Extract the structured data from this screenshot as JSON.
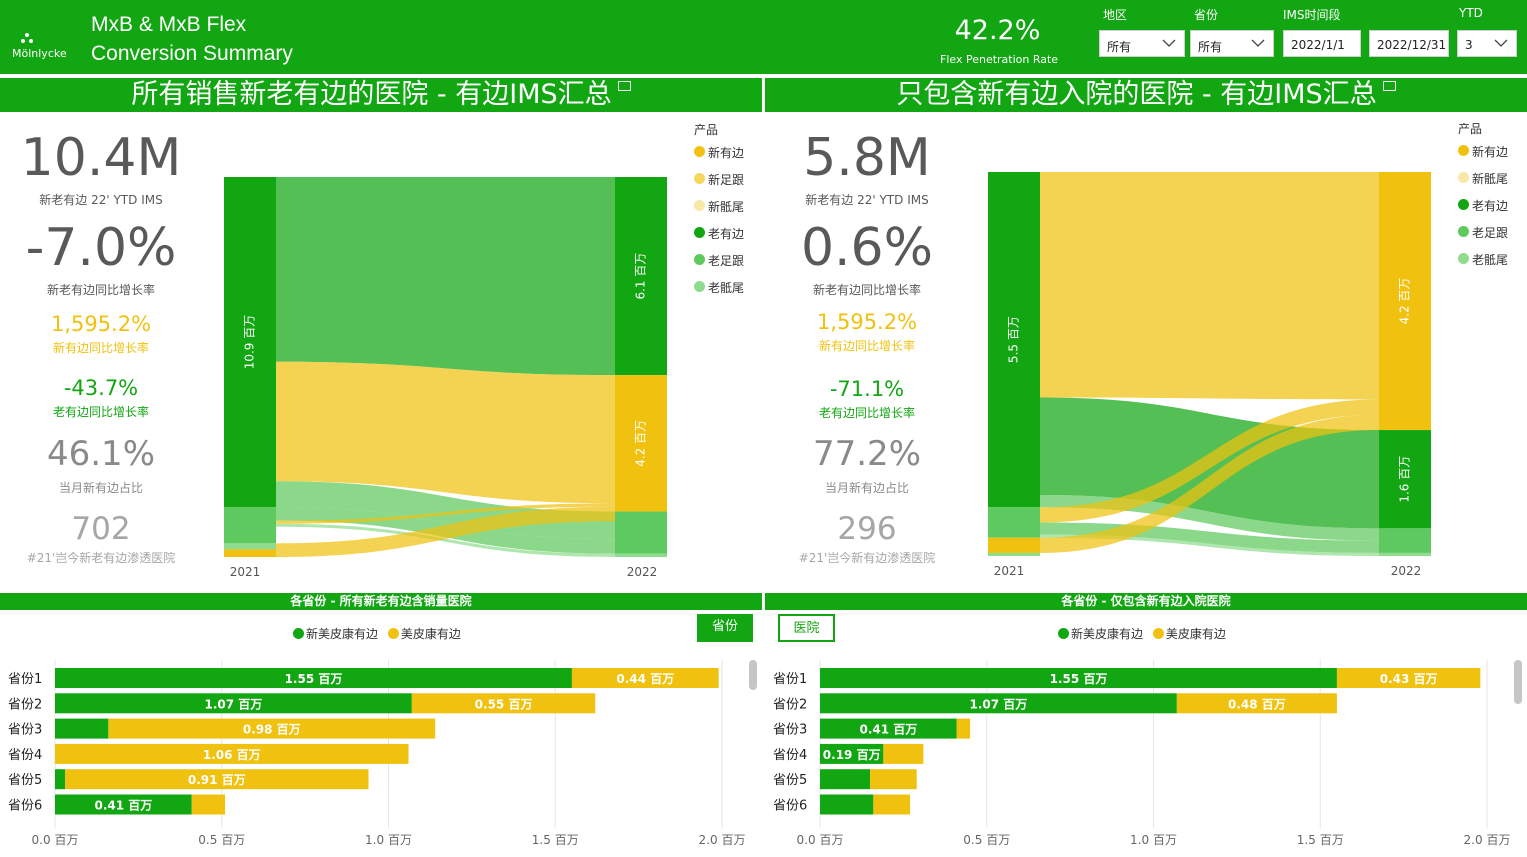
{
  "header": {
    "logo_text": "Mölnlycke",
    "title_line1": "MxB & MxB Flex",
    "title_line2": "Conversion Summary",
    "flex_rate_value": "42.2%",
    "flex_rate_label": "Flex Penetration Rate",
    "brand_color": "#12a612"
  },
  "filters": {
    "region": {
      "label": "地区",
      "value": "所有"
    },
    "province": {
      "label": "省份",
      "value": "所有"
    },
    "ims_period": {
      "label": "IMS时间段",
      "start": "2022/1/1",
      "end": "2022/12/31"
    },
    "ytd": {
      "label": "YTD",
      "value": "3"
    }
  },
  "left_panel": {
    "title": "所有销售新老有边的医院 - 有边IMS汇总",
    "kpis": {
      "ims": {
        "value": "10.4M",
        "label": "新老有边 22' YTD IMS"
      },
      "growth": {
        "value": "-7.0%",
        "label": "新老有边同比增长率"
      },
      "new_growth": {
        "value": "1,595.2%",
        "label": "新有边同比增长率"
      },
      "old_growth": {
        "value": "-43.7%",
        "label": "老有边同比增长率"
      },
      "share": {
        "value": "46.1%",
        "label": "当月新有边占比"
      },
      "hospitals": {
        "value": "702",
        "label": "#21'岂今新老有边渗透医院"
      }
    },
    "legend": {
      "title": "产品",
      "items": [
        {
          "label": "新有边",
          "color": "#f0c20f"
        },
        {
          "label": "新足跟",
          "color": "#f5d75e"
        },
        {
          "label": "新骶尾",
          "color": "#f8e7a6"
        },
        {
          "label": "老有边",
          "color": "#12a612"
        },
        {
          "label": "老足跟",
          "color": "#5ec95e"
        },
        {
          "label": "老骶尾",
          "color": "#8fdc8f"
        }
      ]
    }
  },
  "right_panel": {
    "title": "只包含新有边入院的医院 - 有边IMS汇总",
    "kpis": {
      "ims": {
        "value": "5.8M",
        "label": "新老有边 22' YTD IMS"
      },
      "growth": {
        "value": "0.6%",
        "label": "新老有边同比增长率"
      },
      "new_growth": {
        "value": "1,595.2%",
        "label": "新有边同比增长率"
      },
      "old_growth": {
        "value": "-71.1%",
        "label": "老有边同比增长率"
      },
      "share": {
        "value": "77.2%",
        "label": "当月新有边占比"
      },
      "hospitals": {
        "value": "296",
        "label": "#21'岂今新有边渗透医院"
      }
    },
    "legend": {
      "title": "产品",
      "items": [
        {
          "label": "新有边",
          "color": "#f0c20f"
        },
        {
          "label": "新骶尾",
          "color": "#f8e7a6"
        },
        {
          "label": "老有边",
          "color": "#12a612"
        },
        {
          "label": "老足跟",
          "color": "#5ec95e"
        },
        {
          "label": "老骶尾",
          "color": "#8fdc8f"
        }
      ]
    }
  },
  "chart_data": [
    {
      "type": "sankey",
      "categories": [
        "2021",
        "2022"
      ],
      "node_labels": {
        "left_2021": "10.9 百万",
        "right_old": "6.1 百万",
        "right_new": "4.2 百万"
      },
      "source_2021": [
        {
          "name": "老有边",
          "value": 10.9
        },
        {
          "name": "老足跟",
          "value": 1.2
        },
        {
          "name": "老骶尾",
          "value": 0.2
        },
        {
          "name": "新有边",
          "value": 0.25
        }
      ],
      "target_2022": [
        {
          "name": "老有边",
          "value": 6.1
        },
        {
          "name": "新有边",
          "value": 4.2
        },
        {
          "name": "老足跟",
          "value": 1.3
        },
        {
          "name": "老骶尾",
          "value": 0.1
        }
      ],
      "legend_position": "right"
    },
    {
      "type": "sankey",
      "categories": [
        "2021",
        "2022"
      ],
      "node_labels": {
        "left_2021": "5.5 百万",
        "right_new": "4.2 百万",
        "right_old": "1.6 百万"
      },
      "source_2021": [
        {
          "name": "老有边",
          "value": 5.5
        },
        {
          "name": "老足跟",
          "value": 0.5
        },
        {
          "name": "新有边",
          "value": 0.25
        },
        {
          "name": "老骶尾",
          "value": 0.05
        }
      ],
      "target_2022": [
        {
          "name": "新有边",
          "value": 4.2
        },
        {
          "name": "老有边",
          "value": 1.6
        },
        {
          "name": "老足跟",
          "value": 0.4
        },
        {
          "name": "老骶尾",
          "value": 0.05
        }
      ],
      "legend_position": "right"
    },
    {
      "type": "bar",
      "orientation": "horizontal",
      "stacked": true,
      "title": "各省份 - 所有新老有边含销量医院",
      "categories": [
        "省份1",
        "省份2",
        "省份3",
        "省份4",
        "省份5",
        "省份6"
      ],
      "series": [
        {
          "name": "新美皮康有边",
          "color": "#12a612",
          "values": [
            1.55,
            1.07,
            0.16,
            0.0,
            0.03,
            0.41
          ],
          "labels": [
            "1.55 百万",
            "1.07 百万",
            "",
            "",
            "",
            "0.41 百万"
          ]
        },
        {
          "name": "美皮康有边",
          "color": "#f0c20f",
          "values": [
            0.44,
            0.55,
            0.98,
            1.06,
            0.91,
            0.1
          ],
          "labels": [
            "0.44 百万",
            "0.55 百万",
            "0.98 百万",
            "1.06 百万",
            "0.91 百万",
            ""
          ]
        }
      ],
      "x_ticks": [
        "0.0 百万",
        "0.5 百万",
        "1.0 百万",
        "1.5 百万",
        "2.0 百万"
      ],
      "xlim": [
        0,
        2.0
      ],
      "button_label": "省份"
    },
    {
      "type": "bar",
      "orientation": "horizontal",
      "stacked": true,
      "title": "各省份 - 仅包含新有边入院医院",
      "categories": [
        "省份1",
        "省份2",
        "省份3",
        "省份4",
        "省份5",
        "省份6"
      ],
      "series": [
        {
          "name": "新美皮康有边",
          "color": "#12a612",
          "values": [
            1.55,
            1.07,
            0.41,
            0.19,
            0.15,
            0.16
          ],
          "labels": [
            "1.55 百万",
            "1.07 百万",
            "0.41 百万",
            "0.19 百万",
            "",
            ""
          ]
        },
        {
          "name": "美皮康有边",
          "color": "#f0c20f",
          "values": [
            0.43,
            0.48,
            0.04,
            0.12,
            0.14,
            0.11
          ],
          "labels": [
            "0.43 百万",
            "0.48 百万",
            "",
            "",
            "",
            ""
          ]
        }
      ],
      "x_ticks": [
        "0.0 百万",
        "0.5 百万",
        "1.0 百万",
        "1.5 百万",
        "2.0 百万"
      ],
      "xlim": [
        0,
        2.0
      ],
      "button_label": "医院"
    }
  ]
}
